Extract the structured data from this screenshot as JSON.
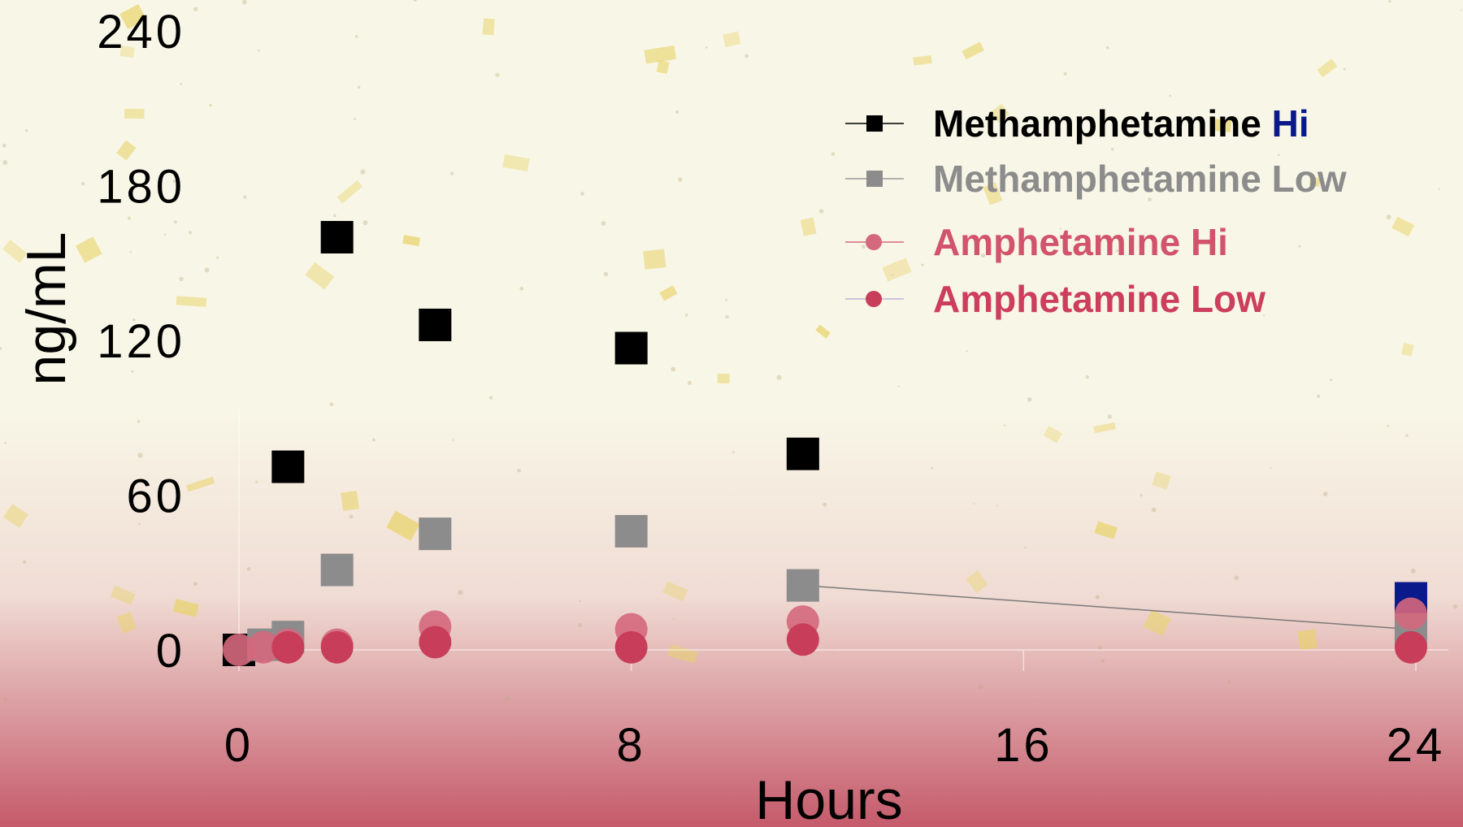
{
  "colors": {
    "bg_top": "#f8f6e6",
    "bg_mid": "#f0dcd4",
    "bg_bottom": "#c55a6b",
    "meth_hi": "#000000",
    "meth_hi_accent": "#0a1a8a",
    "meth_low": "#8c8c8c",
    "amph_hi": "#d4687c",
    "amph_low": "#c83d5a",
    "confetti": "#e8d36a"
  },
  "chart_data": {
    "type": "scatter",
    "xlabel": "Hours",
    "ylabel": "ng/mL",
    "xlim": [
      0,
      24
    ],
    "ylim": [
      0,
      240
    ],
    "x_ticks": [
      "0",
      "8",
      "16",
      "24"
    ],
    "x_tick_values": [
      0,
      8,
      16,
      24
    ],
    "y_ticks": [
      "0",
      "60",
      "120",
      "180",
      "240"
    ],
    "y_tick_values": [
      0,
      60,
      120,
      180,
      240
    ],
    "legend_position": "top-right",
    "grid": false,
    "series": [
      {
        "id": "meth_hi",
        "name_main": "Methamphetamine",
        "name_suffix": "Hi",
        "marker": "square",
        "points": [
          [
            0,
            0
          ],
          [
            1,
            71
          ],
          [
            2,
            160
          ],
          [
            4,
            126
          ],
          [
            8,
            117
          ],
          [
            11.5,
            76
          ],
          [
            23.9,
            20
          ]
        ]
      },
      {
        "id": "meth_low",
        "name_main": "Methamphetamine",
        "name_suffix": "Low",
        "marker": "square",
        "points": [
          [
            0.5,
            2
          ],
          [
            1,
            5
          ],
          [
            2,
            31
          ],
          [
            4,
            45
          ],
          [
            8,
            46
          ],
          [
            11.5,
            25
          ],
          [
            23.9,
            8
          ]
        ],
        "line_from_index": 5
      },
      {
        "id": "amph_hi",
        "name_main": "Amphetamine",
        "name_suffix": "Hi",
        "marker": "circle",
        "points": [
          [
            0,
            0
          ],
          [
            0.5,
            1
          ],
          [
            1,
            2
          ],
          [
            2,
            2
          ],
          [
            4,
            9
          ],
          [
            8,
            8
          ],
          [
            11.5,
            11
          ],
          [
            23.9,
            14
          ]
        ]
      },
      {
        "id": "amph_low",
        "name_main": "Amphetamine",
        "name_suffix": "Low",
        "marker": "circle",
        "points": [
          [
            1,
            1
          ],
          [
            2,
            1
          ],
          [
            4,
            3
          ],
          [
            8,
            1
          ],
          [
            11.5,
            4
          ],
          [
            23.9,
            1
          ]
        ]
      }
    ]
  }
}
